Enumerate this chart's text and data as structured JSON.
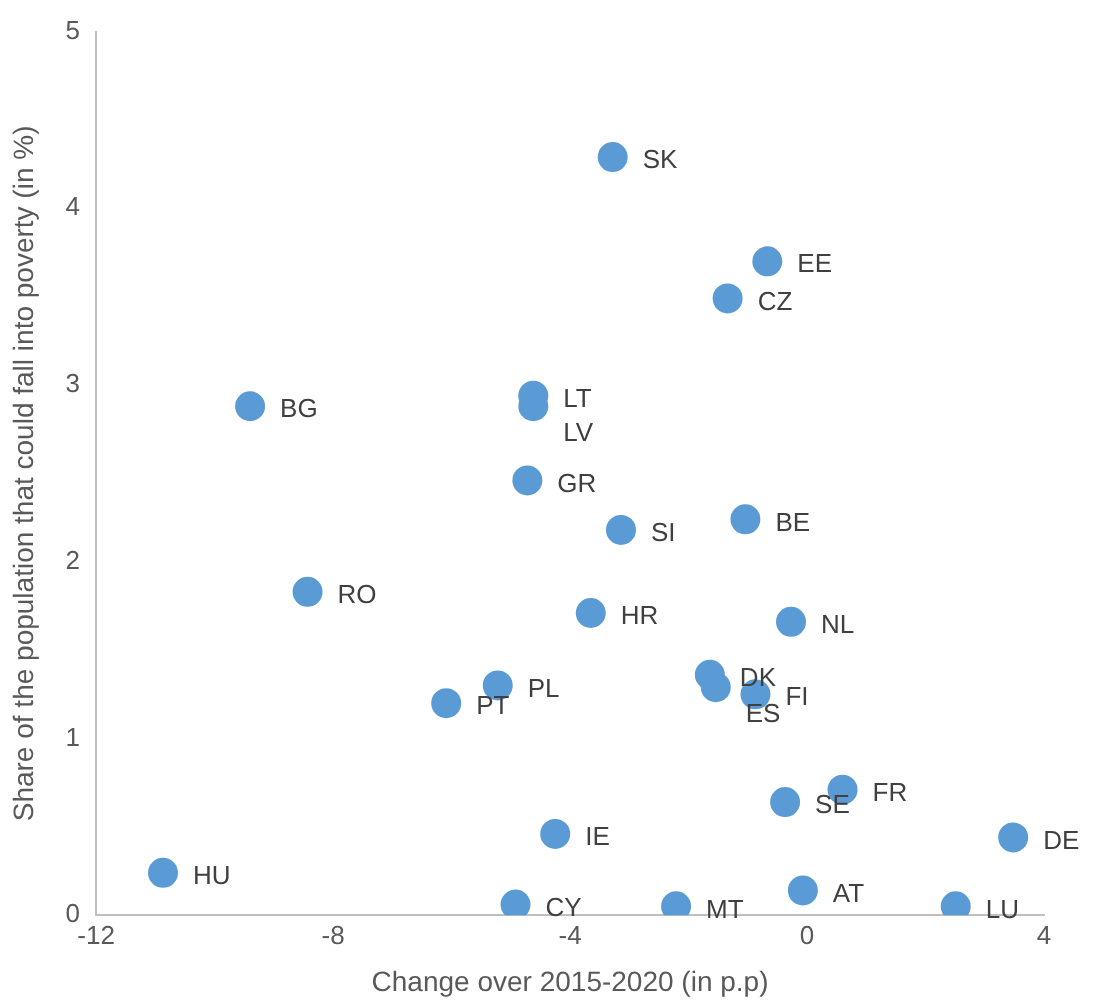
{
  "chart_data": {
    "type": "scatter",
    "xlabel": "Change over 2015-2020 (in p.p)",
    "ylabel": "Share of the population that could fall into poverty (in %)",
    "xlim": [
      -12,
      4
    ],
    "xticks": [
      -12,
      -8,
      -4,
      0,
      4
    ],
    "ylim": [
      0,
      5
    ],
    "yticks": [
      0,
      1,
      2,
      3,
      4,
      5
    ],
    "grid": false,
    "marker": "circle",
    "x": [
      -3.28,
      -0.67,
      -1.34,
      -4.62,
      -4.62,
      -9.4,
      -4.72,
      -3.14,
      -1.04,
      -8.43,
      -3.65,
      -0.27,
      -1.64,
      -1.54,
      -0.87,
      -5.22,
      -6.09,
      0.6,
      -0.37,
      3.48,
      -4.25,
      -10.87,
      -4.92,
      -2.21,
      -0.07,
      2.51
    ],
    "series": [
      {
        "color": "#5b9bd5",
        "values": [
          4.29,
          3.7,
          3.49,
          2.94,
          2.88,
          2.88,
          2.46,
          2.18,
          2.24,
          1.83,
          1.71,
          1.66,
          1.36,
          1.29,
          1.25,
          1.3,
          1.2,
          0.71,
          0.64,
          0.44,
          0.46,
          0.24,
          0.06,
          0.05,
          0.14,
          0.05
        ]
      }
    ],
    "annotations": [
      {
        "text": "SK",
        "x": -3.28,
        "y": 4.29
      },
      {
        "text": "EE",
        "x": -0.67,
        "y": 3.7
      },
      {
        "text": "CZ",
        "x": -1.34,
        "y": 3.49
      },
      {
        "text": "LT",
        "x": -4.62,
        "y": 2.94
      },
      {
        "text": "LV",
        "x": -4.62,
        "y": 2.88
      },
      {
        "text": "BG",
        "x": -9.4,
        "y": 2.88
      },
      {
        "text": "GR",
        "x": -4.72,
        "y": 2.46
      },
      {
        "text": "SI",
        "x": -3.14,
        "y": 2.18
      },
      {
        "text": "BE",
        "x": -1.04,
        "y": 2.24
      },
      {
        "text": "RO",
        "x": -8.43,
        "y": 1.83
      },
      {
        "text": "HR",
        "x": -3.65,
        "y": 1.71
      },
      {
        "text": "NL",
        "x": -0.27,
        "y": 1.66
      },
      {
        "text": "DK",
        "x": -1.64,
        "y": 1.36
      },
      {
        "text": "ES",
        "x": -1.54,
        "y": 1.29
      },
      {
        "text": "FI",
        "x": -0.87,
        "y": 1.25
      },
      {
        "text": "PL",
        "x": -5.22,
        "y": 1.3
      },
      {
        "text": "PT",
        "x": -6.09,
        "y": 1.2
      },
      {
        "text": "FR",
        "x": 0.6,
        "y": 0.71
      },
      {
        "text": "SE",
        "x": -0.37,
        "y": 0.64
      },
      {
        "text": "DE",
        "x": 3.48,
        "y": 0.44
      },
      {
        "text": "IE",
        "x": -4.25,
        "y": 0.46
      },
      {
        "text": "HU",
        "x": -10.87,
        "y": 0.24
      },
      {
        "text": "CY",
        "x": -4.92,
        "y": 0.06
      },
      {
        "text": "MT",
        "x": -2.21,
        "y": 0.05
      },
      {
        "text": "AT",
        "x": -0.07,
        "y": 0.14
      },
      {
        "text": "LU",
        "x": 2.51,
        "y": 0.05
      }
    ]
  }
}
